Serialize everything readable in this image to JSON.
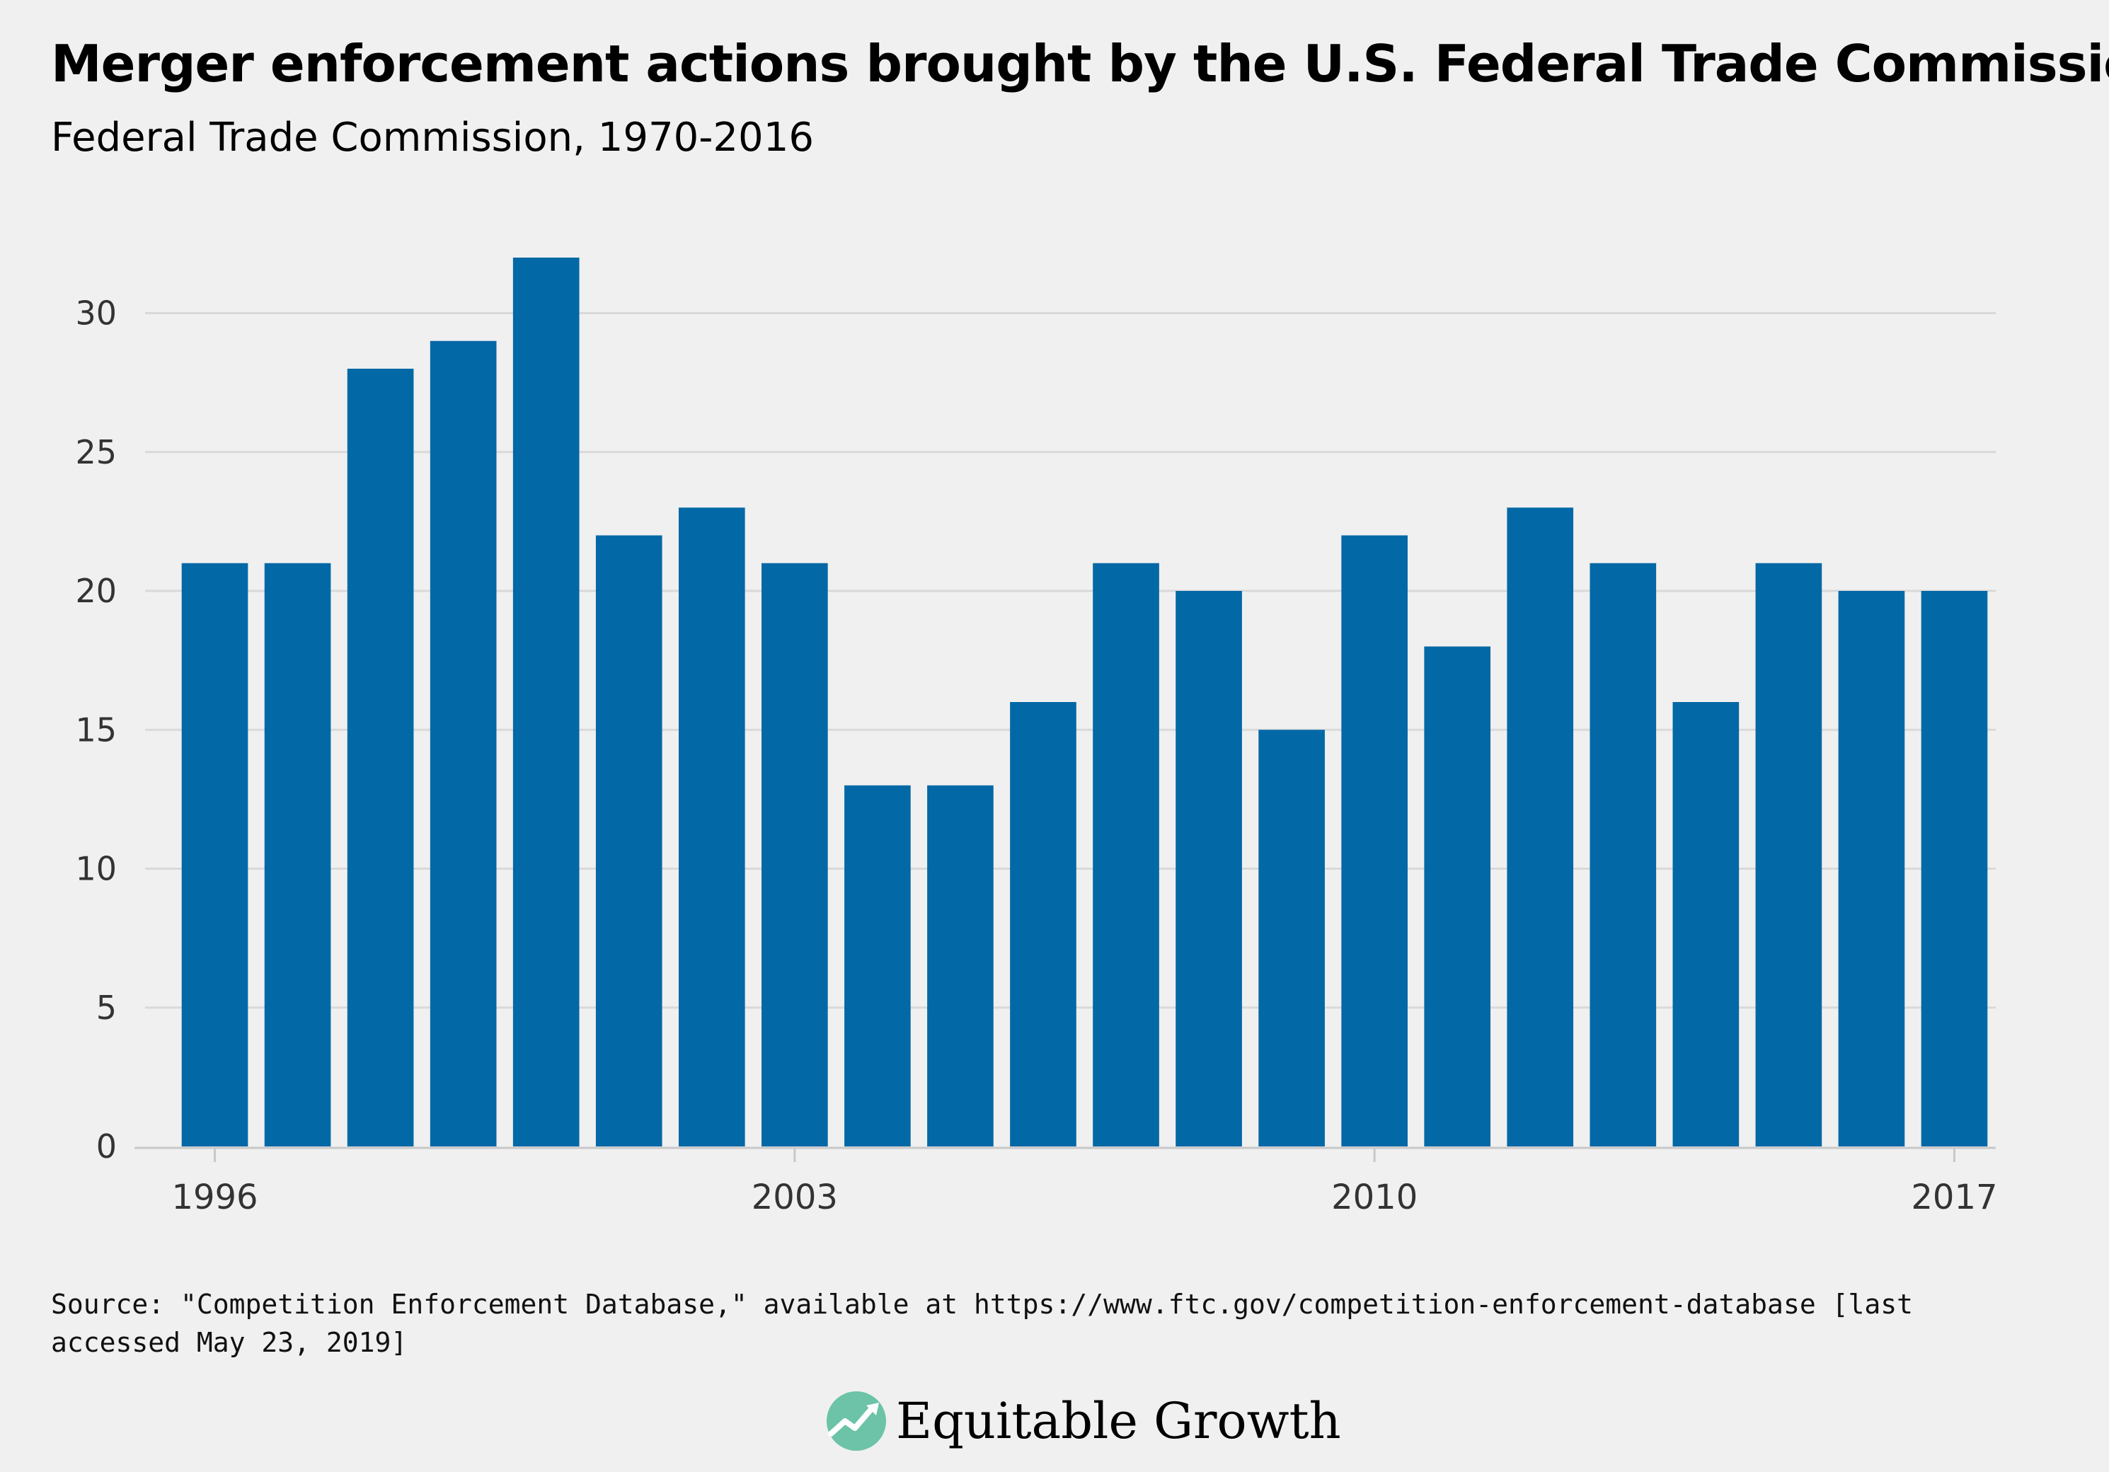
{
  "header": {
    "title": "Merger enforcement actions brought by the U.S. Federal Trade Commission",
    "subtitle": "Federal Trade Commission, 1970-2016"
  },
  "footer": {
    "source": "Source: \"Competition Enforcement Database,\" available at https://www.ftc.gov/competition-enforcement-database [last accessed May 23, 2019]",
    "logo_text": "Equitable Growth",
    "logo_icon": "trend-line-icon"
  },
  "colors": {
    "bar": "#0368a6",
    "background": "#f0f0f0",
    "grid": "#d9d9d9",
    "tick_text": "#333333",
    "logo_mark": "#6cc3a7"
  },
  "chart_data": {
    "type": "bar",
    "x": [
      1996,
      1997,
      1998,
      1999,
      2000,
      2001,
      2002,
      2003,
      2004,
      2005,
      2006,
      2007,
      2008,
      2009,
      2010,
      2011,
      2012,
      2013,
      2014,
      2015,
      2016,
      2017
    ],
    "values": [
      21,
      21,
      28,
      29,
      32,
      22,
      23,
      21,
      13,
      13,
      16,
      21,
      20,
      15,
      22,
      18,
      23,
      21,
      16,
      21,
      20,
      20
    ],
    "xticks": [
      "1996",
      "2003",
      "2010",
      "2017"
    ],
    "yticks": [
      "0",
      "5",
      "10",
      "15",
      "20",
      "25",
      "30"
    ],
    "ylim": [
      0,
      32
    ],
    "title": "Merger enforcement actions brought by the U.S. Federal Trade Commission",
    "xlabel": "",
    "ylabel": "",
    "grid": true,
    "legend": "none"
  }
}
